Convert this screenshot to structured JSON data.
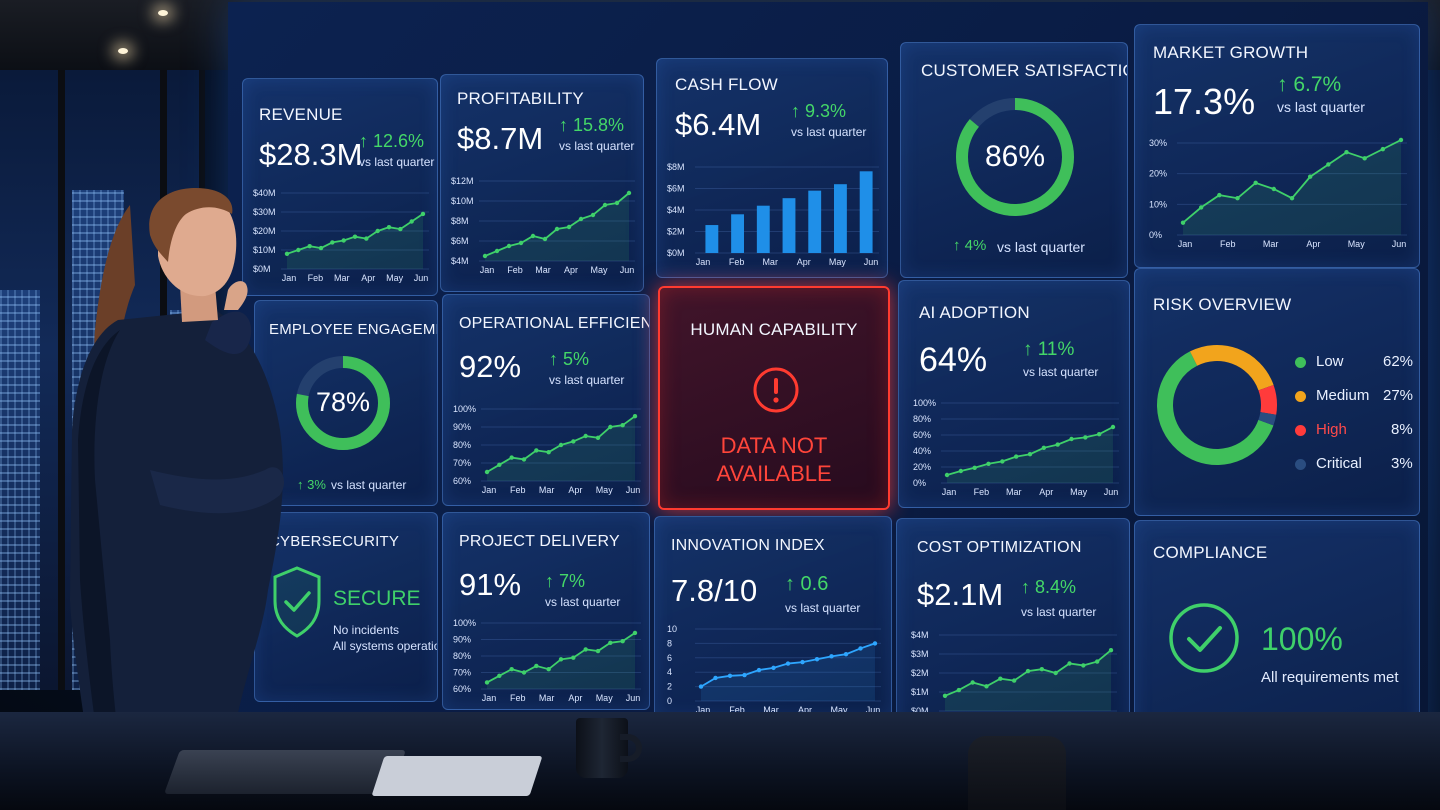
{
  "dashboard": {
    "revenue": {
      "title": "REVENUE",
      "value": "$28.3M",
      "delta": "↑ 12.6%",
      "sub": "vs last quarter",
      "y_ticks": [
        "$40M",
        "$30M",
        "$20M",
        "$10M",
        "$0M"
      ],
      "months": [
        "Jan",
        "Feb",
        "Mar",
        "Apr",
        "May",
        "Jun"
      ],
      "series": [
        8,
        10,
        12,
        11,
        14,
        15,
        17,
        16,
        20,
        22,
        21,
        25,
        29
      ]
    },
    "profitability": {
      "title": "PROFITABILITY",
      "value": "$8.7M",
      "delta": "↑ 15.8%",
      "sub": "vs last quarter",
      "y_ticks": [
        "$12M",
        "$10M",
        "$8M",
        "$6M",
        "$4M"
      ],
      "months": [
        "Jan",
        "Feb",
        "Mar",
        "Apr",
        "May",
        "Jun"
      ],
      "series": [
        4.5,
        5,
        5.5,
        5.8,
        6.5,
        6.2,
        7.2,
        7.4,
        8.2,
        8.6,
        9.6,
        9.8,
        10.8
      ]
    },
    "cash_flow": {
      "title": "CASH FLOW",
      "value": "$6.4M",
      "delta": "↑ 9.3%",
      "sub": "vs last quarter",
      "y_ticks": [
        "$8M",
        "$6M",
        "$4M",
        "$2M",
        "$0M"
      ],
      "months": [
        "Jan",
        "Feb",
        "Mar",
        "Apr",
        "May",
        "Jun"
      ],
      "bars": [
        2.6,
        3.6,
        4.4,
        5.1,
        5.8,
        6.4,
        7.6
      ]
    },
    "customer_satisfaction": {
      "title": "CUSTOMER SATISFACTION",
      "value": "86%",
      "percent": 86,
      "delta": "↑ 4%",
      "sub": "vs last quarter"
    },
    "market_growth": {
      "title": "MARKET GROWTH",
      "value": "17.3%",
      "delta": "↑ 6.7%",
      "sub": "vs last quarter",
      "y_ticks": [
        "30%",
        "20%",
        "10%",
        "0%"
      ],
      "months": [
        "Jan",
        "Feb",
        "Mar",
        "Apr",
        "May",
        "Jun"
      ],
      "series": [
        4,
        9,
        13,
        12,
        17,
        15,
        12,
        19,
        23,
        27,
        25,
        28,
        31
      ]
    },
    "employee_engagement": {
      "title": "EMPLOYEE ENGAGEMENT",
      "value": "78%",
      "percent": 78,
      "delta": "↑ 3%",
      "sub": "vs last quarter"
    },
    "operational_efficiency": {
      "title": "OPERATIONAL EFFICIENCY",
      "value": "92%",
      "delta": "↑ 5%",
      "sub": "vs last quarter",
      "y_ticks": [
        "100%",
        "90%",
        "80%",
        "70%",
        "60%"
      ],
      "months": [
        "Jan",
        "Feb",
        "Mar",
        "Apr",
        "May",
        "Jun"
      ],
      "series": [
        65,
        69,
        73,
        72,
        77,
        76,
        80,
        82,
        85,
        84,
        90,
        91,
        96
      ]
    },
    "human_capability": {
      "title": "HUMAN CAPABILITY",
      "alert_line1": "DATA NOT",
      "alert_line2": "AVAILABLE"
    },
    "ai_adoption": {
      "title": "AI ADOPTION",
      "value": "64%",
      "delta": "↑ 11%",
      "sub": "vs last quarter",
      "y_ticks": [
        "100%",
        "80%",
        "60%",
        "40%",
        "20%",
        "0%"
      ],
      "months": [
        "Jan",
        "Feb",
        "Mar",
        "Apr",
        "May",
        "Jun"
      ],
      "series": [
        10,
        15,
        19,
        24,
        27,
        33,
        36,
        44,
        48,
        55,
        57,
        61,
        70
      ]
    },
    "risk_overview": {
      "title": "RISK OVERVIEW",
      "items": [
        {
          "label": "Low",
          "pct": "62%",
          "value": 62,
          "color": "#3fbf5a"
        },
        {
          "label": "Medium",
          "pct": "27%",
          "value": 27,
          "color": "#f2a41c"
        },
        {
          "label": "High",
          "pct": "8%",
          "value": 8,
          "color": "#ff3b3b"
        },
        {
          "label": "Critical",
          "pct": "3%",
          "value": 3,
          "color": "#2a4d80"
        }
      ]
    },
    "cybersecurity": {
      "title": "CYBERSECURITY",
      "status": "SECURE",
      "line1": "No incidents",
      "line2": "All systems operational"
    },
    "project_delivery": {
      "title": "PROJECT DELIVERY",
      "value": "91%",
      "delta": "↑ 7%",
      "sub": "vs last quarter",
      "y_ticks": [
        "100%",
        "90%",
        "80%",
        "70%",
        "60%"
      ],
      "months": [
        "Jan",
        "Feb",
        "Mar",
        "Apr",
        "May",
        "Jun"
      ],
      "series": [
        64,
        68,
        72,
        70,
        74,
        72,
        78,
        79,
        84,
        83,
        88,
        89,
        94
      ]
    },
    "innovation_index": {
      "title": "INNOVATION INDEX",
      "value": "7.8/10",
      "delta": "↑ 0.6",
      "sub": "vs last quarter",
      "y_ticks": [
        "10",
        "8",
        "6",
        "4",
        "2",
        "0"
      ],
      "months": [
        "Jan",
        "Feb",
        "Mar",
        "Apr",
        "May",
        "Jun"
      ],
      "series": [
        2,
        3.2,
        3.5,
        3.6,
        4.3,
        4.6,
        5.2,
        5.4,
        5.8,
        6.2,
        6.5,
        7.3,
        8
      ]
    },
    "cost_optimization": {
      "title": "COST OPTIMIZATION",
      "value": "$2.1M",
      "delta": "↑ 8.4%",
      "sub": "vs last quarter",
      "y_ticks": [
        "$4M",
        "$3M",
        "$2M",
        "$1M",
        "$0M"
      ],
      "months": [
        "Jan",
        "Feb",
        "Mar",
        "Apr",
        "May",
        "Jun"
      ],
      "series": [
        0.8,
        1.1,
        1.5,
        1.3,
        1.7,
        1.6,
        2.1,
        2.2,
        2.0,
        2.5,
        2.4,
        2.6,
        3.2
      ]
    },
    "compliance": {
      "title": "COMPLIANCE",
      "value": "100%",
      "sub": "All requirements met"
    }
  }
}
